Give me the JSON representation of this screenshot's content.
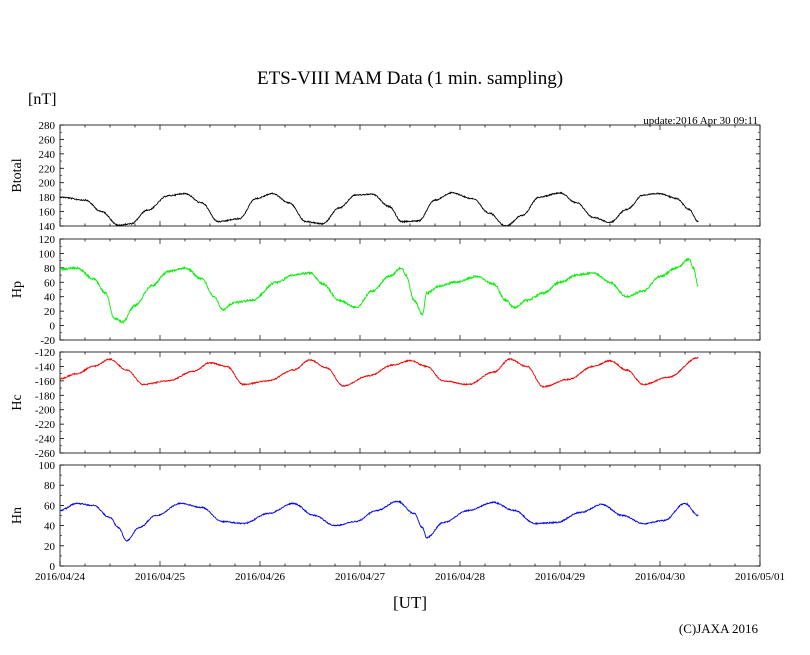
{
  "title": "ETS-VIII MAM Data (1 min. sampling)",
  "y_unit": "[nT]",
  "update_label": "update:2016 Apr 30 09:11",
  "x_unit": "[UT]",
  "copyright": "(C)JAXA 2016",
  "chart_data": {
    "type": "line",
    "x_axis": {
      "unit": "[UT]",
      "range": [
        "2016-04-24T00:00",
        "2016-05-01T00:00"
      ],
      "tick_labels": [
        "2016/04/24",
        "2016/04/25",
        "2016/04/26",
        "2016/04/27",
        "2016/04/28",
        "2016/04/29",
        "2016/04/30",
        "2016/05/01"
      ],
      "data_end": "2016-04-30T09:11"
    },
    "grid": false,
    "legend": "none",
    "panels": [
      {
        "ylabel": "Btotal",
        "color": "#000000",
        "ylim": [
          140,
          280
        ],
        "ticks": [
          "280",
          "260",
          "240",
          "220",
          "200",
          "180",
          "160",
          "140"
        ],
        "noise": 1.2,
        "x": [
          "2016-04-24T00:00",
          "2016-04-24T06:00",
          "2016-04-24T10:00",
          "2016-04-24T14:00",
          "2016-04-24T17:00",
          "2016-04-24T21:00",
          "2016-04-25T02:00",
          "2016-04-25T06:00",
          "2016-04-25T10:00",
          "2016-04-25T14:00",
          "2016-04-25T19:00",
          "2016-04-25T23:00",
          "2016-04-26T03:00",
          "2016-04-26T07:00",
          "2016-04-26T11:00",
          "2016-04-26T15:00",
          "2016-04-26T19:00",
          "2016-04-26T23:00",
          "2016-04-27T03:00",
          "2016-04-27T07:00",
          "2016-04-27T10:00",
          "2016-04-27T14:00",
          "2016-04-27T18:00",
          "2016-04-27T22:00",
          "2016-04-28T03:00",
          "2016-04-28T07:00",
          "2016-04-28T11:00",
          "2016-04-28T15:00",
          "2016-04-28T19:00",
          "2016-04-29T00:00",
          "2016-04-29T04:00",
          "2016-04-29T08:00",
          "2016-04-29T12:00",
          "2016-04-29T16:00",
          "2016-04-29T20:00",
          "2016-04-30T00:00",
          "2016-04-30T04:00",
          "2016-04-30T07:00",
          "2016-04-30T09:11"
        ],
        "y": [
          180,
          176,
          160,
          141,
          143,
          162,
          182,
          185,
          172,
          146,
          150,
          178,
          185,
          172,
          146,
          143,
          165,
          183,
          184,
          167,
          146,
          147,
          176,
          186,
          178,
          158,
          140,
          155,
          180,
          186,
          172,
          152,
          145,
          163,
          183,
          185,
          178,
          163,
          146
        ]
      },
      {
        "ylabel": "Hp",
        "color": "#00ee00",
        "ylim": [
          -20,
          120
        ],
        "ticks": [
          "120",
          "100",
          "80",
          "60",
          "40",
          "20",
          "0",
          "-20"
        ],
        "noise": 2.0,
        "x": [
          "2016-04-24T00:00",
          "2016-04-24T04:00",
          "2016-04-24T08:00",
          "2016-04-24T11:00",
          "2016-04-24T13:00",
          "2016-04-24T15:00",
          "2016-04-24T18:00",
          "2016-04-24T22:00",
          "2016-04-25T02:00",
          "2016-04-25T06:00",
          "2016-04-25T10:00",
          "2016-04-25T13:00",
          "2016-04-25T15:00",
          "2016-04-25T18:00",
          "2016-04-25T22:00",
          "2016-04-26T04:00",
          "2016-04-26T08:00",
          "2016-04-26T12:00",
          "2016-04-26T15:00",
          "2016-04-26T19:00",
          "2016-04-26T23:00",
          "2016-04-27T03:00",
          "2016-04-27T07:00",
          "2016-04-27T10:00",
          "2016-04-27T11:00",
          "2016-04-27T13:00",
          "2016-04-27T15:00",
          "2016-04-27T16:00",
          "2016-04-27T19:00",
          "2016-04-27T23:00",
          "2016-04-28T04:00",
          "2016-04-28T08:00",
          "2016-04-28T11:00",
          "2016-04-28T13:00",
          "2016-04-28T16:00",
          "2016-04-28T20:00",
          "2016-04-29T00:00",
          "2016-04-29T04:00",
          "2016-04-29T08:00",
          "2016-04-29T12:00",
          "2016-04-29T16:00",
          "2016-04-29T20:00",
          "2016-04-30T00:00",
          "2016-04-30T04:00",
          "2016-04-30T07:00",
          "2016-04-30T08:00",
          "2016-04-30T09:11"
        ],
        "y": [
          78,
          80,
          65,
          45,
          10,
          5,
          28,
          55,
          75,
          80,
          65,
          40,
          22,
          32,
          35,
          60,
          70,
          73,
          58,
          35,
          25,
          48,
          68,
          80,
          70,
          35,
          15,
          45,
          55,
          60,
          68,
          58,
          35,
          25,
          35,
          45,
          60,
          70,
          73,
          60,
          40,
          48,
          68,
          80,
          92,
          80,
          55
        ]
      },
      {
        "ylabel": "Hc",
        "color": "#ee0000",
        "ylim": [
          -260,
          -120
        ],
        "ticks": [
          "-120",
          "-140",
          "-160",
          "-180",
          "-200",
          "-220",
          "-240",
          "-260"
        ],
        "noise": 1.2,
        "x": [
          "2016-04-24T00:00",
          "2016-04-24T04:00",
          "2016-04-24T08:00",
          "2016-04-24T12:00",
          "2016-04-24T16:00",
          "2016-04-24T20:00",
          "2016-04-25T02:00",
          "2016-04-25T08:00",
          "2016-04-25T12:00",
          "2016-04-25T16:00",
          "2016-04-25T20:00",
          "2016-04-26T02:00",
          "2016-04-26T08:00",
          "2016-04-26T12:00",
          "2016-04-26T16:00",
          "2016-04-26T20:00",
          "2016-04-27T02:00",
          "2016-04-27T08:00",
          "2016-04-27T12:00",
          "2016-04-27T16:00",
          "2016-04-27T20:00",
          "2016-04-28T02:00",
          "2016-04-28T08:00",
          "2016-04-28T12:00",
          "2016-04-28T16:00",
          "2016-04-28T20:00",
          "2016-04-29T02:00",
          "2016-04-29T08:00",
          "2016-04-29T12:00",
          "2016-04-29T16:00",
          "2016-04-29T20:00",
          "2016-04-30T02:00",
          "2016-04-30T09:11"
        ],
        "y": [
          -157,
          -150,
          -140,
          -130,
          -145,
          -165,
          -160,
          -147,
          -135,
          -140,
          -165,
          -160,
          -145,
          -131,
          -142,
          -167,
          -153,
          -138,
          -132,
          -140,
          -160,
          -165,
          -148,
          -130,
          -140,
          -168,
          -158,
          -140,
          -132,
          -145,
          -165,
          -155,
          -128
        ]
      },
      {
        "ylabel": "Hn",
        "color": "#0000ee",
        "ylim": [
          0,
          100
        ],
        "ticks": [
          "100",
          "80",
          "60",
          "40",
          "20",
          "0"
        ],
        "noise": 1.2,
        "x": [
          "2016-04-24T00:00",
          "2016-04-24T04:00",
          "2016-04-24T08:00",
          "2016-04-24T12:00",
          "2016-04-24T14:00",
          "2016-04-24T16:00",
          "2016-04-24T19:00",
          "2016-04-24T23:00",
          "2016-04-25T05:00",
          "2016-04-25T10:00",
          "2016-04-25T15:00",
          "2016-04-25T20:00",
          "2016-04-26T02:00",
          "2016-04-26T08:00",
          "2016-04-26T13:00",
          "2016-04-26T18:00",
          "2016-04-26T23:00",
          "2016-04-27T04:00",
          "2016-04-27T09:00",
          "2016-04-27T13:00",
          "2016-04-27T15:00",
          "2016-04-27T16:00",
          "2016-04-27T20:00",
          "2016-04-28T02:00",
          "2016-04-28T08:00",
          "2016-04-28T13:00",
          "2016-04-28T18:00",
          "2016-04-28T23:00",
          "2016-04-29T05:00",
          "2016-04-29T10:00",
          "2016-04-29T15:00",
          "2016-04-29T20:00",
          "2016-04-30T01:00",
          "2016-04-30T06:00",
          "2016-04-30T09:11"
        ],
        "y": [
          55,
          62,
          60,
          48,
          38,
          25,
          38,
          50,
          62,
          58,
          44,
          42,
          52,
          62,
          50,
          40,
          44,
          55,
          64,
          52,
          38,
          28,
          43,
          55,
          63,
          55,
          42,
          43,
          53,
          61,
          50,
          42,
          45,
          62,
          50
        ]
      }
    ]
  }
}
